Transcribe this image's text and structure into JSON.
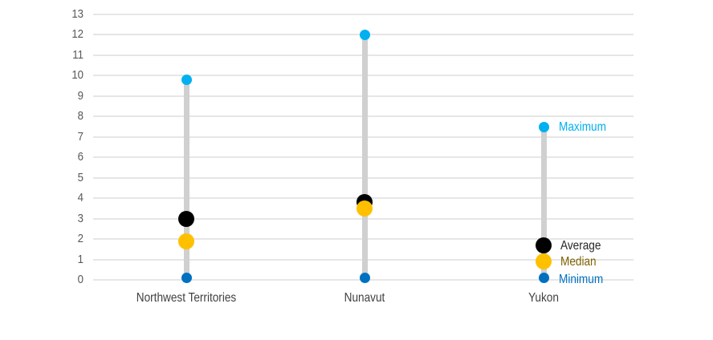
{
  "chart_data": {
    "type": "scatter",
    "subtype": "dot-range (min / median / average / max)",
    "title": "",
    "xlabel": "",
    "ylabel": "",
    "categories": [
      "Northwest Territories",
      "Nunavut",
      "Yukon"
    ],
    "ylim": [
      0,
      13
    ],
    "yticks": [
      "0",
      "1",
      "2",
      "3",
      "4",
      "5",
      "6",
      "7",
      "8",
      "9",
      "10",
      "11",
      "12",
      "13"
    ],
    "grid": true,
    "legend_position": "inline-right (next to Yukon markers)",
    "series": [
      {
        "name": "Maximum",
        "color": "#00b0f0",
        "values": [
          9.8,
          12.0,
          7.5
        ]
      },
      {
        "name": "Average",
        "color": "#000000",
        "values": [
          3.0,
          3.8,
          1.7
        ]
      },
      {
        "name": "Median",
        "color": "#ffc000",
        "values": [
          1.9,
          3.5,
          0.9
        ]
      },
      {
        "name": "Minimum",
        "color": "#0070c0",
        "values": [
          0.1,
          0.1,
          0.1
        ]
      }
    ]
  },
  "legend": {
    "maximum": {
      "label": "Maximum",
      "color": "#00b0f0"
    },
    "average": {
      "label": "Average",
      "color": "#262626"
    },
    "median": {
      "label": "Median",
      "color": "#7f6000"
    },
    "minimum": {
      "label": "Minimum",
      "color": "#0070c0"
    }
  },
  "axis": {
    "x_labels": [
      "Northwest Territories",
      "Nunavut",
      "Yukon"
    ]
  }
}
